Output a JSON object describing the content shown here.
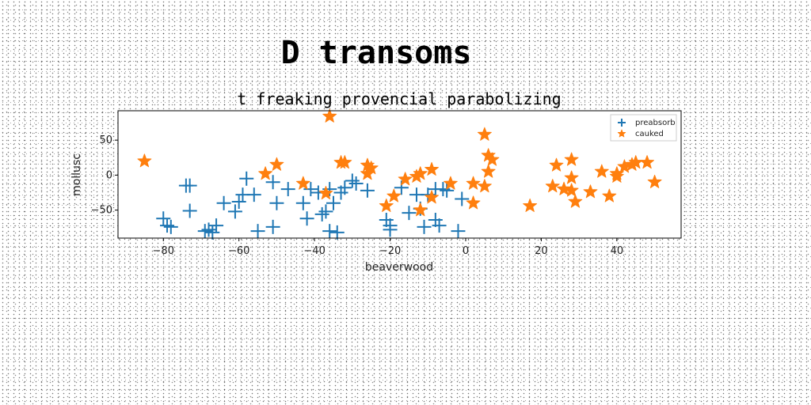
{
  "chart_data": {
    "type": "scatter",
    "title": "D transoms",
    "subtitle": "t freaking provencial parabolizing",
    "xlabel": "beaverwood",
    "ylabel": "mollusc",
    "xlim": [
      -92,
      57
    ],
    "ylim": [
      -90,
      92
    ],
    "xticks": [
      -80,
      -60,
      -40,
      -20,
      0,
      20,
      40
    ],
    "yticks": [
      -50,
      0,
      50
    ],
    "legend_position": "top-right",
    "series": [
      {
        "name": "preabsorb",
        "marker": "plus",
        "color": "#1f77b4",
        "points": [
          [
            -80,
            -62
          ],
          [
            -79,
            -72
          ],
          [
            -78,
            -74
          ],
          [
            -74,
            -15
          ],
          [
            -73,
            -15
          ],
          [
            -73,
            -51
          ],
          [
            -69,
            -80
          ],
          [
            -68,
            -78
          ],
          [
            -67,
            -82
          ],
          [
            -66,
            -72
          ],
          [
            -64,
            -40
          ],
          [
            -61,
            -52
          ],
          [
            -60,
            -38
          ],
          [
            -59,
            -28
          ],
          [
            -58,
            -5
          ],
          [
            -56,
            -28
          ],
          [
            -55,
            -80
          ],
          [
            -51,
            -74
          ],
          [
            -51,
            -10
          ],
          [
            -50,
            -40
          ],
          [
            -47,
            -20
          ],
          [
            -43,
            -40
          ],
          [
            -42,
            -62
          ],
          [
            -41,
            -20
          ],
          [
            -39,
            -25
          ],
          [
            -38,
            -56
          ],
          [
            -37,
            -52
          ],
          [
            -36,
            -20
          ],
          [
            -36,
            -80
          ],
          [
            -35,
            -40
          ],
          [
            -34,
            -82
          ],
          [
            -33,
            -25
          ],
          [
            -32,
            -18
          ],
          [
            -30,
            -8
          ],
          [
            -29,
            -12
          ],
          [
            -26,
            -22
          ],
          [
            -21,
            -64
          ],
          [
            -20,
            -72
          ],
          [
            -20,
            -78
          ],
          [
            -17,
            -18
          ],
          [
            -15,
            -54
          ],
          [
            -13,
            -28
          ],
          [
            -12,
            -48
          ],
          [
            -11,
            -74
          ],
          [
            -10,
            -28
          ],
          [
            -8,
            -64
          ],
          [
            -8,
            -20
          ],
          [
            -7,
            -72
          ],
          [
            -6,
            -20
          ],
          [
            -5,
            -22
          ],
          [
            -2,
            -80
          ],
          [
            -1,
            -34
          ]
        ]
      },
      {
        "name": "cauked",
        "marker": "star",
        "color": "#ff7f0e",
        "points": [
          [
            -85,
            20
          ],
          [
            -53,
            2
          ],
          [
            -50,
            15
          ],
          [
            -43,
            -12
          ],
          [
            -37,
            -26
          ],
          [
            -36,
            84
          ],
          [
            -33,
            18
          ],
          [
            -32,
            18
          ],
          [
            -26,
            2
          ],
          [
            -26,
            14
          ],
          [
            -25,
            10
          ],
          [
            -21,
            -44
          ],
          [
            -19,
            -30
          ],
          [
            -16,
            -6
          ],
          [
            -13,
            -2
          ],
          [
            -12,
            2
          ],
          [
            -12,
            -50
          ],
          [
            -9,
            -32
          ],
          [
            -9,
            8
          ],
          [
            -4,
            -12
          ],
          [
            2,
            -12
          ],
          [
            2,
            -40
          ],
          [
            5,
            58
          ],
          [
            5,
            -16
          ],
          [
            6,
            5
          ],
          [
            6,
            28
          ],
          [
            7,
            22
          ],
          [
            17,
            -44
          ],
          [
            23,
            -16
          ],
          [
            24,
            14
          ],
          [
            26,
            -20
          ],
          [
            28,
            -22
          ],
          [
            28,
            22
          ],
          [
            28,
            -4
          ],
          [
            29,
            -38
          ],
          [
            33,
            -24
          ],
          [
            36,
            5
          ],
          [
            38,
            -30
          ],
          [
            40,
            2
          ],
          [
            40,
            -2
          ],
          [
            42,
            12
          ],
          [
            44,
            15
          ],
          [
            45,
            18
          ],
          [
            48,
            18
          ],
          [
            50,
            -10
          ]
        ]
      }
    ]
  }
}
